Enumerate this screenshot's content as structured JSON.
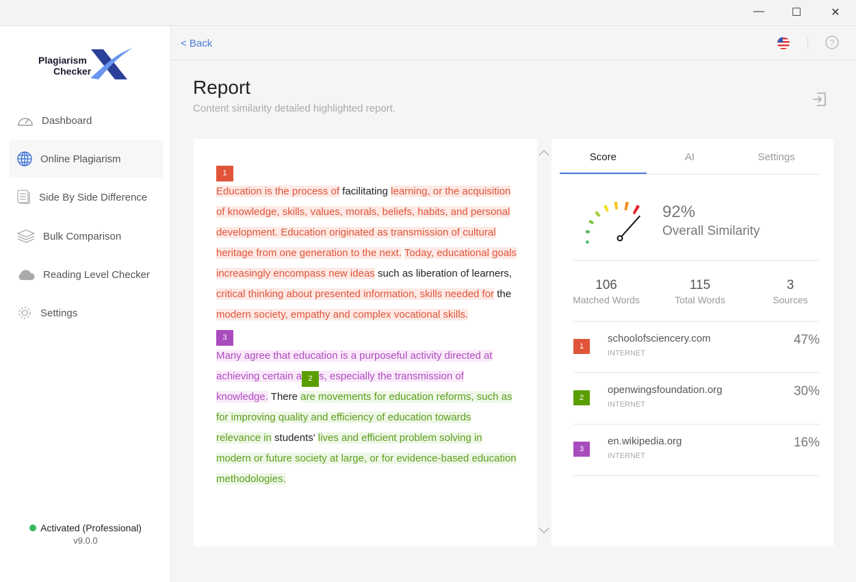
{
  "window": {
    "minimize": "—",
    "maximize": "☐",
    "close": "✕"
  },
  "sidebar": {
    "logo": {
      "line1": "Plagiarism",
      "line2": "Checker",
      "mark": "X"
    },
    "items": [
      {
        "label": "Dashboard",
        "icon": "gauge-icon"
      },
      {
        "label": "Online Plagiarism",
        "icon": "globe-icon",
        "active": true
      },
      {
        "label": "Side By Side Difference",
        "icon": "document-icon"
      },
      {
        "label": "Bulk Comparison",
        "icon": "layers-icon"
      },
      {
        "label": "Reading Level Checker",
        "icon": "cloud-icon"
      },
      {
        "label": "Settings",
        "icon": "gear-icon"
      }
    ],
    "status": "Activated (Professional)",
    "version": "v9.0.0",
    "status_color": "#3cb960"
  },
  "topbar": {
    "back": "< Back"
  },
  "page": {
    "title": "Report",
    "subtitle": "Content similarity detailed highlighted report."
  },
  "colors": {
    "source1": "#e0553a",
    "source2": "#5a9e00",
    "source3": "#a84bbd",
    "accent": "#4a7bd8"
  },
  "document": {
    "segments": [
      {
        "badge": "1",
        "src": 1
      },
      {
        "t": "Education is the process of",
        "src": 1
      },
      {
        "t": " facilitating ",
        "src": 0
      },
      {
        "t": "learning, or the acquisition of knowledge, skills, values, morals, beliefs, habits, and personal development. Education originated as transmission of cultural heritage from one generation to the next.",
        "src": 1
      },
      {
        "t": " ",
        "src": 0
      },
      {
        "t": "Today, educational goals increasingly encompass new ideas",
        "src": 1
      },
      {
        "t": " such as liberation of learners, ",
        "src": 0
      },
      {
        "t": "critical thinking about presented information, skills needed for",
        "src": 1
      },
      {
        "t": " the ",
        "src": 0
      },
      {
        "t": "modern society, empathy and complex vocational skills.",
        "src": 1
      },
      {
        "badge": "3",
        "src": 3
      },
      {
        "t": "Many agree that education is a purposeful activity directed at achieving certain a",
        "src": 3
      },
      {
        "badge": "2",
        "src": 2,
        "inline": true
      },
      {
        "t": "s, especially the transmission of knowledge.",
        "src": 3
      },
      {
        "t": " There ",
        "src": 0
      },
      {
        "t": "are movements for education reforms, such as for improving quality and efficiency of education towards relevance in",
        "src": 2
      },
      {
        "t": " students' ",
        "src": 0
      },
      {
        "t": "lives and efficient problem solving in modern or future society at large, or for evidence-based education methodologies.",
        "src": 2
      }
    ]
  },
  "report": {
    "tabs": [
      "Score",
      "AI",
      "Settings"
    ],
    "active_tab": "Score",
    "similarity_percent": 92,
    "similarity_label": "92%",
    "similarity_text": "Overall Similarity",
    "stats": [
      {
        "n": "106",
        "l": "Matched Words"
      },
      {
        "n": "115",
        "l": "Total Words"
      },
      {
        "n": "3",
        "l": "Sources"
      }
    ],
    "sources": [
      {
        "badge": "1",
        "domain": "schoolofsciencery.com",
        "kind": "INTERNET",
        "pct": "47%"
      },
      {
        "badge": "2",
        "domain": "openwingsfoundation.org",
        "kind": "INTERNET",
        "pct": "30%"
      },
      {
        "badge": "3",
        "domain": "en.wikipedia.org",
        "kind": "INTERNET",
        "pct": "16%"
      }
    ]
  }
}
